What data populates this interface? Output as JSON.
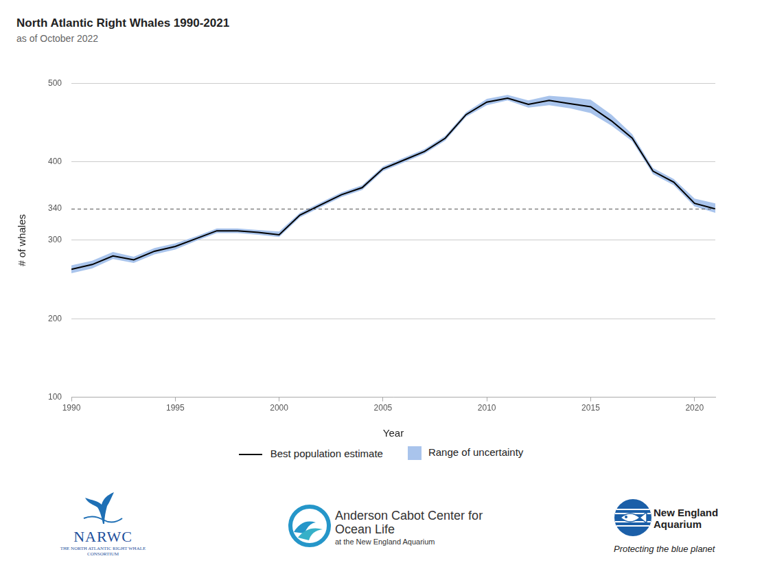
{
  "chart_data": {
    "type": "line",
    "title": "North Atlantic Right Whales 1990-2021",
    "subtitle": "as of October 2022",
    "x_label": "Year",
    "y_label": "# of whales",
    "x": [
      1990,
      1991,
      1992,
      1993,
      1994,
      1995,
      1996,
      1997,
      1998,
      1999,
      2000,
      2001,
      2002,
      2003,
      2004,
      2005,
      2006,
      2007,
      2008,
      2009,
      2010,
      2011,
      2012,
      2013,
      2014,
      2015,
      2016,
      2017,
      2018,
      2019,
      2020,
      2021
    ],
    "series": [
      {
        "name": "Best population estimate",
        "color": "#000000",
        "type": "line",
        "values": [
          263,
          269,
          280,
          275,
          286,
          292,
          302,
          312,
          312,
          310,
          307,
          332,
          345,
          358,
          367,
          391,
          402,
          413,
          430,
          460,
          476,
          481,
          473,
          478,
          474,
          470,
          452,
          430,
          388,
          374,
          347,
          340
        ]
      },
      {
        "name": "Range of uncertainty",
        "color": "#a9c4ec",
        "type": "band",
        "lower": [
          258,
          264,
          276,
          271,
          282,
          288,
          299,
          309,
          309,
          307,
          304,
          329,
          342,
          355,
          364,
          388,
          399,
          410,
          427,
          457,
          472,
          478,
          469,
          472,
          468,
          462,
          446,
          426,
          384,
          370,
          343,
          335
        ],
        "upper": [
          268,
          274,
          285,
          279,
          290,
          296,
          305,
          315,
          315,
          313,
          311,
          335,
          348,
          361,
          370,
          394,
          405,
          416,
          433,
          463,
          480,
          485,
          478,
          484,
          482,
          479,
          460,
          435,
          392,
          378,
          353,
          347
        ]
      }
    ],
    "xlim": [
      1990,
      2021
    ],
    "xticks": [
      1990,
      1995,
      2000,
      2005,
      2010,
      2015,
      2020
    ],
    "ylim": [
      100,
      500
    ],
    "yticks": [
      100,
      200,
      300,
      340,
      400,
      500
    ],
    "grid": true,
    "legend": "bottom"
  },
  "footer": {
    "logos": [
      {
        "name": "NARWC",
        "text": "THE NORTH ATLANTIC RIGHT WHALE CONSORTIUM"
      },
      {
        "name": "Anderson Cabot Center for Ocean Life",
        "text": "at the New England Aquarium"
      },
      {
        "name": "New England Aquarium",
        "text": "Protecting the blue planet"
      }
    ]
  }
}
